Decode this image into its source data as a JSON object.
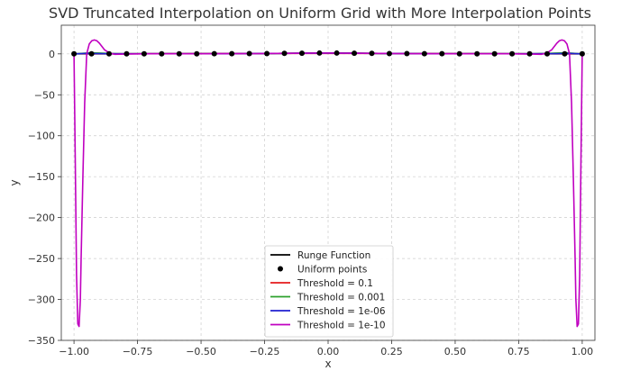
{
  "chart_data": {
    "type": "line",
    "title": "SVD Truncated Interpolation on Uniform Grid with More Interpolation Points",
    "xlabel": "x",
    "ylabel": "y",
    "xlim": [
      -1.05,
      1.05
    ],
    "ylim": [
      -350,
      35
    ],
    "grid": true,
    "legend_position": "lower-center",
    "xticks": [
      -1.0,
      -0.75,
      -0.5,
      -0.25,
      0.0,
      0.25,
      0.5,
      0.75,
      1.0
    ],
    "xtick_labels": [
      "−1.00",
      "−0.75",
      "−0.50",
      "−0.25",
      "0.00",
      "0.25",
      "0.50",
      "0.75",
      "1.00"
    ],
    "yticks": [
      0,
      -50,
      -100,
      -150,
      -200,
      -250,
      -300,
      -350
    ],
    "ytick_labels": [
      "0",
      "−50",
      "−100",
      "−150",
      "−200",
      "−250",
      "−300",
      "−350"
    ],
    "series": [
      {
        "name": "Runge Function",
        "kind": "line",
        "color": "#000000",
        "x": [
          -1.0,
          -0.9,
          -0.8,
          -0.6,
          -0.4,
          -0.2,
          -0.1,
          0.0,
          0.1,
          0.2,
          0.4,
          0.6,
          0.8,
          0.9,
          1.0
        ],
        "y": [
          0.04,
          0.05,
          0.06,
          0.1,
          0.2,
          0.5,
          0.8,
          1.0,
          0.8,
          0.5,
          0.2,
          0.1,
          0.06,
          0.05,
          0.04
        ]
      },
      {
        "name": "Uniform points",
        "kind": "scatter",
        "color": "#000000",
        "x": [
          -1.0,
          -0.931,
          -0.862,
          -0.793,
          -0.724,
          -0.655,
          -0.586,
          -0.517,
          -0.448,
          -0.379,
          -0.31,
          -0.241,
          -0.172,
          -0.103,
          -0.034,
          0.034,
          0.103,
          0.172,
          0.241,
          0.31,
          0.379,
          0.448,
          0.517,
          0.586,
          0.655,
          0.724,
          0.793,
          0.862,
          0.931,
          1.0
        ],
        "y": [
          0.04,
          0.04,
          0.05,
          0.06,
          0.07,
          0.09,
          0.1,
          0.13,
          0.17,
          0.22,
          0.29,
          0.41,
          0.57,
          0.79,
          0.97,
          0.97,
          0.79,
          0.57,
          0.41,
          0.29,
          0.22,
          0.17,
          0.13,
          0.1,
          0.09,
          0.07,
          0.06,
          0.05,
          0.04,
          0.04
        ]
      },
      {
        "name": "Threshold = 0.1",
        "kind": "line",
        "color": "#e41a1c",
        "x": [
          -1.0,
          -0.9,
          -0.8,
          -0.6,
          -0.4,
          -0.2,
          0.0,
          0.2,
          0.4,
          0.6,
          0.8,
          0.9,
          1.0
        ],
        "y": [
          0.1,
          0.15,
          0.2,
          0.3,
          0.4,
          0.5,
          0.6,
          0.5,
          0.4,
          0.3,
          0.2,
          0.15,
          0.1
        ]
      },
      {
        "name": "Threshold = 0.001",
        "kind": "line",
        "color": "#2ca02c",
        "x": [
          -1.0,
          -0.97,
          -0.94,
          -0.9,
          -0.85,
          -0.8,
          -0.6,
          -0.4,
          -0.2,
          0.0,
          0.2,
          0.4,
          0.6,
          0.8,
          0.85,
          0.9,
          0.94,
          0.97,
          1.0
        ],
        "y": [
          0.04,
          0.6,
          1.2,
          1.0,
          0.4,
          0.1,
          0.1,
          0.2,
          0.5,
          1.0,
          0.5,
          0.2,
          0.1,
          0.1,
          0.4,
          1.0,
          1.2,
          0.6,
          0.04
        ]
      },
      {
        "name": "Threshold = 1e-06",
        "kind": "line",
        "color": "#1f1fd0",
        "x": [
          -1.0,
          -0.95,
          -0.9,
          -0.8,
          -0.6,
          -0.4,
          -0.2,
          0.0,
          0.2,
          0.4,
          0.6,
          0.8,
          0.9,
          0.95,
          1.0
        ],
        "y": [
          0.04,
          0.5,
          0.3,
          0.1,
          0.1,
          0.2,
          0.5,
          1.0,
          0.5,
          0.2,
          0.1,
          0.1,
          0.3,
          0.5,
          0.04
        ]
      },
      {
        "name": "Threshold = 1e-10",
        "kind": "line",
        "color": "#c000c0",
        "x": [
          -1.0,
          -0.995,
          -0.99,
          -0.985,
          -0.98,
          -0.975,
          -0.972,
          -0.965,
          -0.958,
          -0.95,
          -0.94,
          -0.93,
          -0.92,
          -0.91,
          -0.9,
          -0.89,
          -0.88,
          -0.86,
          -0.84,
          -0.8,
          -0.7,
          -0.5,
          -0.3,
          -0.1,
          0.0,
          0.1,
          0.3,
          0.5,
          0.7,
          0.8,
          0.84,
          0.86,
          0.88,
          0.89,
          0.9,
          0.91,
          0.92,
          0.93,
          0.94,
          0.95,
          0.958,
          0.965,
          0.972,
          0.975,
          0.98,
          0.985,
          0.99,
          0.995,
          1.0
        ],
        "y": [
          0.04,
          -130,
          -270,
          -330,
          -333,
          -300,
          -250,
          -150,
          -60,
          0,
          12,
          16,
          17,
          16,
          13,
          9,
          5,
          1,
          -0.5,
          -0.3,
          0.1,
          0.2,
          0.3,
          0.8,
          1.0,
          0.8,
          0.3,
          0.2,
          0.1,
          -0.3,
          -0.5,
          1,
          5,
          9,
          13,
          16,
          17,
          16,
          12,
          0,
          -60,
          -150,
          -250,
          -300,
          -333,
          -330,
          -270,
          -130,
          0.04
        ]
      }
    ]
  }
}
